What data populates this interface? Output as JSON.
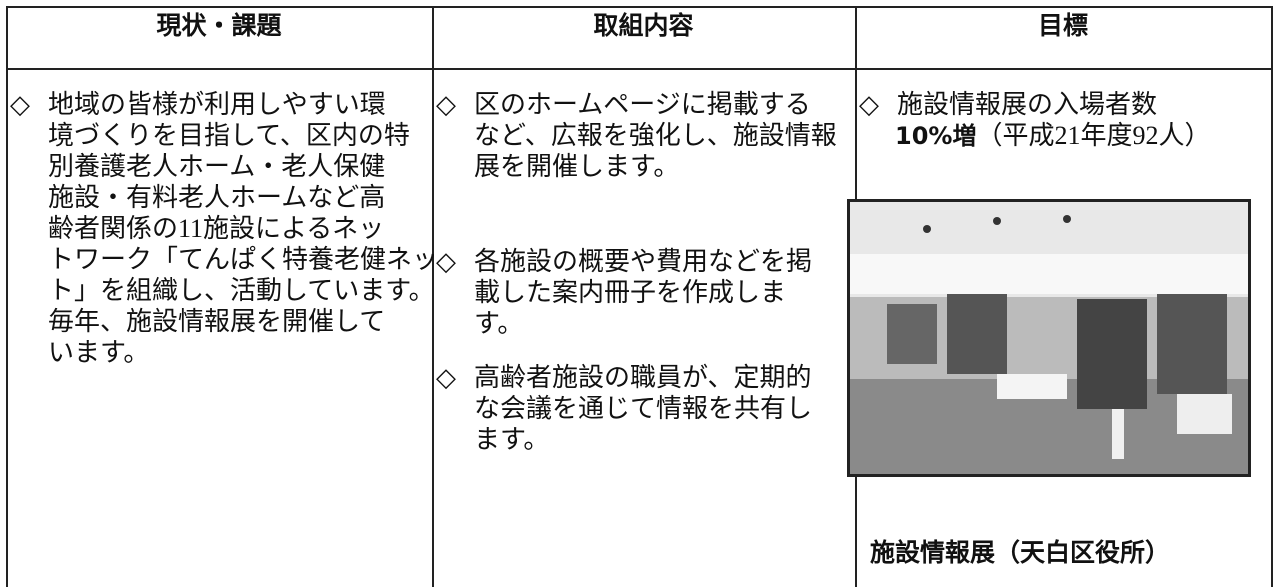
{
  "table": {
    "headers": [
      "現状・課題",
      "取組内容",
      "目標"
    ],
    "columns": [
      {
        "items": [
          {
            "bullet": "◇",
            "lines": [
              "地域の皆様が利用しやすい環",
              "境づくりを目指して、区内の特",
              "別養護老人ホーム・老人保健",
              "施設・有料老人ホームなど高",
              "齢者関係の11施設によるネッ",
              "トワーク「てんぱく特養老健ネッ",
              "ト」を組織し、活動しています。",
              "毎年、施設情報展を開催して",
              "います。"
            ]
          }
        ]
      },
      {
        "items": [
          {
            "bullet": "◇",
            "lines": [
              "区のホームページに掲載する",
              "など、広報を強化し、施設情報",
              "展を開催します。"
            ]
          },
          {
            "bullet": "◇",
            "lines": [
              "各施設の概要や費用などを掲",
              "載した案内冊子を作成しま",
              "す。"
            ]
          },
          {
            "bullet": "◇",
            "lines": [
              "高齢者施設の職員が、定期的",
              "な会議を通じて情報を共有し",
              "ます。"
            ]
          }
        ]
      },
      {
        "items": [
          {
            "bullet": "◇",
            "lines": [
              "施設情報展の入場者数"
            ]
          }
        ],
        "target": {
          "emphasis": "10%増",
          "note": "（平成21年度92人）"
        },
        "caption": "施設情報展（天白区役所）"
      }
    ]
  }
}
